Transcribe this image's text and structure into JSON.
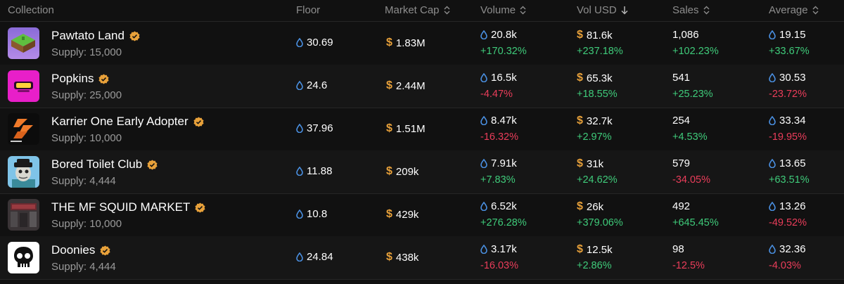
{
  "header": {
    "collection": "Collection",
    "floor": "Floor",
    "market_cap": "Market Cap",
    "volume": "Volume",
    "vol_usd": "Vol USD",
    "sales": "Sales",
    "average": "Average"
  },
  "colors": {
    "background": "#111111",
    "positive": "#3fcb7a",
    "negative": "#ea3d5a",
    "usd": "#e8a13a",
    "verified": "#e8a13a",
    "token_icon": "#4a90e2"
  },
  "icons": {
    "token": "water-drop-icon",
    "usd": "dollar-icon",
    "verified": "verified-badge-icon",
    "sort": "sort-icon",
    "sort_desc": "arrow-down-icon"
  },
  "rows": [
    {
      "name": "Pawtato Land",
      "supply": "Supply: 15,000",
      "floor": "30.69",
      "market_cap": "1.83M",
      "volume": "20.8k",
      "volume_change": "+170.32%",
      "vol_usd": "81.6k",
      "vol_usd_change": "+237.18%",
      "sales": "1,086",
      "sales_change": "+102.23%",
      "average": "19.15",
      "average_change": "+33.67%"
    },
    {
      "name": "Popkins",
      "supply": "Supply: 25,000",
      "floor": "24.6",
      "market_cap": "2.44M",
      "volume": "16.5k",
      "volume_change": "-4.47%",
      "vol_usd": "65.3k",
      "vol_usd_change": "+18.55%",
      "sales": "541",
      "sales_change": "+25.23%",
      "average": "30.53",
      "average_change": "-23.72%"
    },
    {
      "name": "Karrier One Early Adopter",
      "supply": "Supply: 10,000",
      "floor": "37.96",
      "market_cap": "1.51M",
      "volume": "8.47k",
      "volume_change": "-16.32%",
      "vol_usd": "32.7k",
      "vol_usd_change": "+2.97%",
      "sales": "254",
      "sales_change": "+4.53%",
      "average": "33.34",
      "average_change": "-19.95%"
    },
    {
      "name": "Bored Toilet Club",
      "supply": "Supply: 4,444",
      "floor": "11.88",
      "market_cap": "209k",
      "volume": "7.91k",
      "volume_change": "+7.83%",
      "vol_usd": "31k",
      "vol_usd_change": "+24.62%",
      "sales": "579",
      "sales_change": "-34.05%",
      "average": "13.65",
      "average_change": "+63.51%"
    },
    {
      "name": "THE MF SQUID MARKET",
      "supply": "Supply: 10,000",
      "floor": "10.8",
      "market_cap": "429k",
      "volume": "6.52k",
      "volume_change": "+276.28%",
      "vol_usd": "26k",
      "vol_usd_change": "+379.06%",
      "sales": "492",
      "sales_change": "+645.45%",
      "average": "13.26",
      "average_change": "-49.52%"
    },
    {
      "name": "Doonies",
      "supply": "Supply: 4,444",
      "floor": "24.84",
      "market_cap": "438k",
      "volume": "3.17k",
      "volume_change": "-16.03%",
      "vol_usd": "12.5k",
      "vol_usd_change": "+2.86%",
      "sales": "98",
      "sales_change": "-12.5%",
      "average": "32.36",
      "average_change": "-4.03%"
    }
  ]
}
